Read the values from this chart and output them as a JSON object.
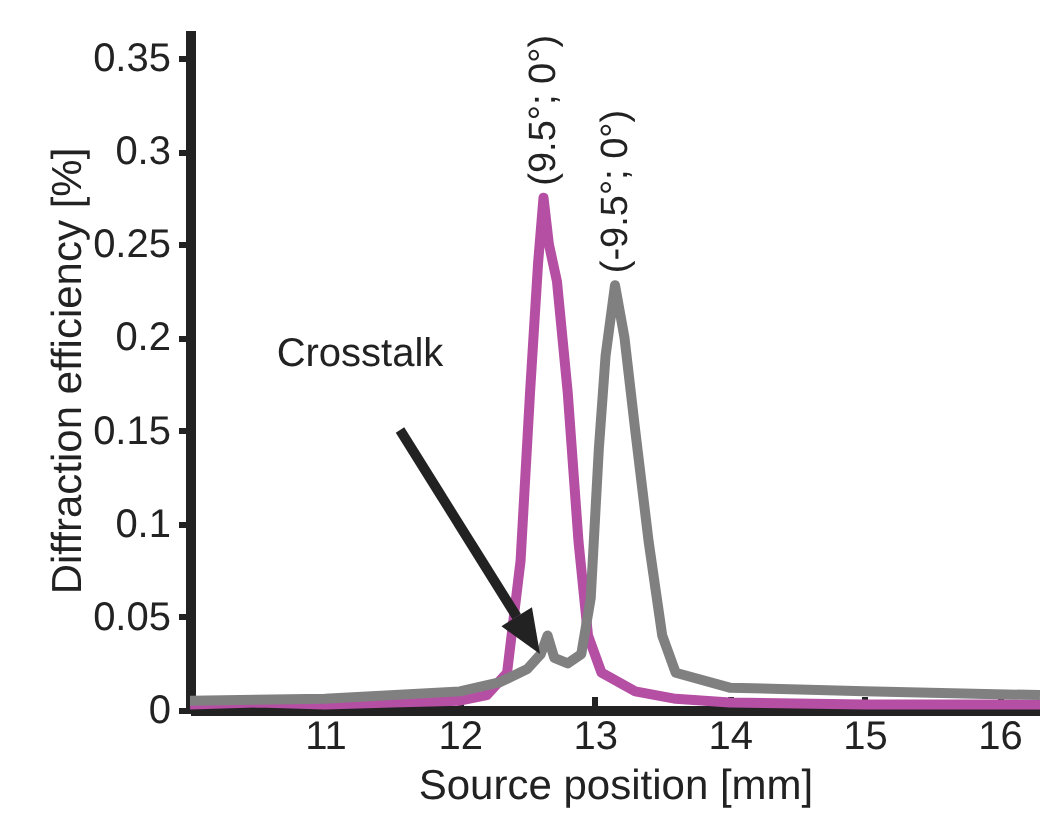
{
  "chart_data": {
    "type": "line",
    "xlabel": "Source position [mm]",
    "ylabel": "Diffraction efficiency [%]",
    "xlim": [
      10,
      16.3
    ],
    "xticks": [
      11,
      12,
      13,
      14,
      15,
      16
    ],
    "ylim": [
      0,
      0.365
    ],
    "yticks": [
      0,
      0.05,
      0.1,
      0.15,
      0.2,
      0.25,
      0.3,
      0.35
    ],
    "grid": false,
    "annotations": [
      "Crosstalk"
    ],
    "series": [
      {
        "name": "(9.5°; 0°)",
        "color": "#b54fa3",
        "x": [
          10,
          10.5,
          11,
          11.5,
          12,
          12.2,
          12.35,
          12.45,
          12.52,
          12.58,
          12.62,
          12.66,
          12.72,
          12.8,
          12.88,
          12.95,
          13.05,
          13.3,
          13.6,
          14,
          15,
          16.3
        ],
        "values": [
          0.003,
          0.004,
          0.003,
          0.004,
          0.005,
          0.008,
          0.02,
          0.08,
          0.17,
          0.24,
          0.275,
          0.25,
          0.23,
          0.17,
          0.09,
          0.04,
          0.02,
          0.01,
          0.006,
          0.004,
          0.003,
          0.003
        ]
      },
      {
        "name": "(-9.5°; 0°)",
        "color": "#808080",
        "x": [
          10,
          11,
          12,
          12.3,
          12.5,
          12.6,
          12.65,
          12.7,
          12.8,
          12.9,
          12.97,
          13.03,
          13.08,
          13.15,
          13.22,
          13.3,
          13.4,
          13.5,
          13.6,
          14,
          15,
          16.3
        ],
        "values": [
          0.005,
          0.006,
          0.01,
          0.015,
          0.022,
          0.03,
          0.04,
          0.028,
          0.025,
          0.03,
          0.06,
          0.14,
          0.19,
          0.228,
          0.2,
          0.15,
          0.09,
          0.04,
          0.02,
          0.012,
          0.01,
          0.008
        ]
      }
    ]
  }
}
